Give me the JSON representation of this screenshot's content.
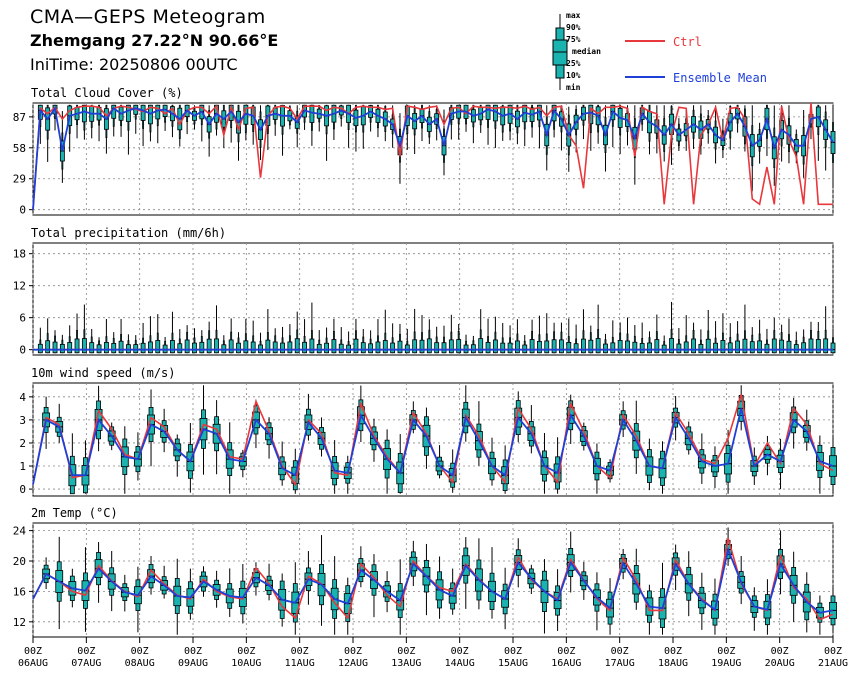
{
  "header": {
    "title": "CMA—GEPS Meteogram",
    "location": "Zhemgang 27.22°N 90.66°E",
    "initime": "IniTime: 20250806 00UTC"
  },
  "box_legend": {
    "labels": [
      "max",
      "90%",
      "75%",
      "median",
      "25%",
      "10%",
      "min"
    ]
  },
  "line_legend": [
    {
      "name": "Ctrl",
      "color": "#e8383d"
    },
    {
      "name": "Ensemble Mean",
      "color": "#1f3fd6"
    }
  ],
  "colors": {
    "box_fill": "#1bb3b0",
    "ctrl": "#e8383d",
    "mean": "#1f3fd6",
    "grid": "#888888"
  },
  "xaxis": {
    "ticks": [
      {
        "time": "00Z",
        "date": "06AUG"
      },
      {
        "time": "00Z",
        "date": "07AUG"
      },
      {
        "time": "00Z",
        "date": "08AUG"
      },
      {
        "time": "00Z",
        "date": "09AUG"
      },
      {
        "time": "00Z",
        "date": "10AUG"
      },
      {
        "time": "00Z",
        "date": "11AUG"
      },
      {
        "time": "00Z",
        "date": "12AUG"
      },
      {
        "time": "00Z",
        "date": "13AUG"
      },
      {
        "time": "00Z",
        "date": "14AUG"
      },
      {
        "time": "00Z",
        "date": "15AUG"
      },
      {
        "time": "00Z",
        "date": "16AUG"
      },
      {
        "time": "00Z",
        "date": "17AUG"
      },
      {
        "time": "00Z",
        "date": "18AUG"
      },
      {
        "time": "00Z",
        "date": "19AUG"
      },
      {
        "time": "00Z",
        "date": "20AUG"
      },
      {
        "time": "00Z",
        "date": "21AUG"
      }
    ]
  },
  "chart_data": [
    {
      "type": "box",
      "title": "Total Cloud Cover (%)",
      "yticks": [
        0,
        29,
        58,
        87
      ],
      "ylim": [
        -5,
        100
      ],
      "grid": true,
      "ctrl": [
        0,
        95,
        90,
        96,
        85,
        93,
        96,
        97,
        97,
        96,
        88,
        95,
        97,
        96,
        94,
        92,
        96,
        95,
        90,
        95,
        80,
        93,
        96,
        96,
        90,
        97,
        70,
        96,
        75,
        95,
        96,
        30,
        88,
        96,
        97,
        95,
        85,
        97,
        97,
        97,
        93,
        96,
        95,
        90,
        96,
        97,
        96,
        96,
        94,
        95,
        50,
        97,
        96,
        94,
        96,
        97,
        80,
        95,
        96,
        90,
        97,
        96,
        96,
        95,
        96,
        96,
        95,
        97,
        94,
        96,
        88,
        96,
        97,
        70,
        60,
        20,
        95,
        90,
        96,
        96,
        97,
        95,
        50,
        96,
        92,
        90,
        5,
        70,
        96,
        95,
        5,
        70,
        80,
        96,
        65,
        95,
        96,
        85,
        10,
        5,
        40,
        5,
        97,
        65,
        50,
        5,
        100,
        5,
        5,
        5
      ],
      "mean": [
        0,
        93,
        85,
        95,
        55,
        88,
        90,
        92,
        90,
        90,
        85,
        95,
        90,
        93,
        95,
        93,
        90,
        93,
        94,
        90,
        85,
        93,
        88,
        92,
        80,
        90,
        85,
        92,
        82,
        90,
        88,
        75,
        88,
        90,
        88,
        88,
        82,
        93,
        91,
        90,
        88,
        90,
        93,
        90,
        86,
        88,
        92,
        88,
        85,
        80,
        60,
        88,
        83,
        88,
        80,
        85,
        60,
        90,
        92,
        92,
        88,
        90,
        94,
        92,
        88,
        90,
        85,
        91,
        89,
        92,
        70,
        93,
        85,
        70,
        82,
        90,
        91,
        88,
        70,
        92,
        86,
        84,
        67,
        90,
        82,
        78,
        70,
        80,
        70,
        75,
        80,
        75,
        80,
        70,
        65,
        82,
        90,
        78,
        60,
        65,
        85,
        58,
        75,
        70,
        60,
        60,
        85,
        87,
        75,
        63
      ]
    },
    {
      "type": "box",
      "title": "Total precipitation (mm/6h)",
      "yticks": [
        0,
        6,
        12,
        18
      ],
      "ylim": [
        -1,
        20
      ],
      "grid": true,
      "ctrl": [
        0,
        0,
        0,
        0,
        0,
        0,
        0,
        0,
        0,
        0,
        0,
        0,
        0,
        0,
        0,
        0,
        0,
        0,
        0,
        0,
        0,
        0,
        0,
        0,
        0,
        0,
        0,
        0,
        0,
        0,
        0,
        0,
        0,
        0,
        0,
        0,
        0,
        0,
        0,
        0,
        0,
        0,
        0,
        0,
        0,
        0,
        0,
        0,
        0,
        0,
        0,
        0,
        0,
        0,
        0,
        0,
        0,
        0,
        0,
        0,
        0,
        0,
        0,
        0,
        0,
        0,
        0,
        0,
        0,
        0,
        0,
        0,
        0,
        0,
        0,
        0,
        0,
        0,
        0,
        0,
        0,
        0,
        0,
        0,
        0,
        0,
        0,
        0,
        0,
        0,
        0,
        0,
        0,
        0,
        0,
        0,
        0,
        0,
        0,
        0,
        0,
        0,
        0,
        0,
        0,
        0,
        0,
        0,
        0,
        0
      ],
      "mean": [
        0,
        0,
        0,
        0,
        0,
        0,
        0,
        0,
        0,
        0,
        0,
        0,
        0,
        0,
        0,
        0,
        0,
        0,
        0,
        0,
        0,
        0,
        0,
        0,
        0,
        0,
        0,
        0,
        0,
        0,
        0,
        0,
        0,
        0,
        0,
        0,
        0,
        0,
        0,
        0,
        0,
        0,
        0,
        0,
        0,
        0,
        0,
        0,
        0,
        0,
        0,
        0,
        0,
        0,
        0,
        0,
        0,
        0,
        0,
        0,
        0,
        0,
        0,
        0,
        0,
        0,
        0,
        0,
        0,
        0,
        0,
        0,
        0,
        0,
        0,
        0,
        0,
        0,
        0,
        0,
        0,
        0,
        0,
        0,
        0,
        0,
        0,
        0,
        0,
        0,
        0,
        0,
        0,
        0,
        0,
        0,
        0,
        0,
        0,
        0,
        0,
        0,
        0,
        0,
        0,
        0,
        0,
        0,
        0,
        0
      ]
    },
    {
      "type": "box",
      "title": "10m wind speed (m/s)",
      "yticks": [
        0,
        1,
        2,
        3,
        4
      ],
      "ylim": [
        -0.3,
        4.6
      ],
      "grid": true,
      "ctrl": [
        0.2,
        3.1,
        2.8,
        0.5,
        0.6,
        3.4,
        2.6,
        1.5,
        1.3,
        3.1,
        2.7,
        1.7,
        1.2,
        2.8,
        2.6,
        1.4,
        1.3,
        3.8,
        2.5,
        1.0,
        0.2,
        3.0,
        2.4,
        0.7,
        0.6,
        3.7,
        2.3,
        1.4,
        0.7,
        3.3,
        2.4,
        1.0,
        0.3,
        3.2,
        2.3,
        1.0,
        0.3,
        3.5,
        2.6,
        1.0,
        0.3,
        3.7,
        2.5,
        1.0,
        0.5,
        3.2,
        2.3,
        1.0,
        0.9,
        3.3,
        2.4,
        1.3,
        1.1,
        2.2,
        4.1,
        1.0,
        2.0,
        1.1,
        3.5,
        2.8,
        1.1,
        0.8
      ],
      "mean": [
        0.2,
        3.0,
        2.7,
        0.6,
        0.6,
        3.0,
        2.3,
        1.4,
        1.3,
        2.8,
        2.5,
        1.7,
        1.2,
        2.6,
        2.4,
        1.3,
        1.2,
        3.0,
        2.4,
        0.9,
        0.6,
        2.9,
        2.2,
        0.8,
        0.7,
        3.2,
        2.2,
        1.3,
        0.7,
        3.0,
        2.3,
        1.0,
        0.6,
        3.1,
        2.1,
        1.0,
        0.6,
        3.1,
        2.4,
        1.0,
        0.7,
        3.2,
        2.3,
        1.0,
        0.8,
        3.0,
        2.1,
        1.0,
        0.9,
        3.1,
        2.2,
        1.2,
        1.0,
        1.1,
        3.5,
        1.0,
        1.5,
        1.2,
        3.0,
        2.5,
        1.2,
        1.0
      ]
    },
    {
      "type": "box",
      "title": "2m Temp (°C)",
      "yticks": [
        12,
        16,
        20,
        24
      ],
      "ylim": [
        10,
        25
      ],
      "grid": true,
      "ctrl": [
        15,
        18.3,
        17.3,
        16.0,
        15.5,
        19.4,
        17.4,
        16.0,
        15.3,
        18.8,
        17.0,
        15.5,
        15.0,
        17.6,
        16.0,
        15.3,
        15.0,
        19.1,
        17.0,
        14.0,
        12.5,
        18.0,
        17.0,
        14.5,
        12.5,
        19.6,
        17.8,
        15.5,
        14.0,
        20.0,
        18.0,
        16.5,
        16.0,
        19.6,
        17.6,
        16.0,
        15.0,
        20.5,
        17.5,
        16.0,
        15.0,
        20.2,
        17.5,
        15.0,
        13.5,
        20.4,
        17.5,
        13.5,
        13.5,
        20.2,
        17.0,
        15.0,
        13.5,
        23.0,
        17.0,
        14.0,
        13.5,
        20.7,
        16.5,
        15.0,
        12.3,
        13.0
      ],
      "mean": [
        15,
        18.3,
        17.3,
        16.4,
        16.1,
        19.0,
        17.3,
        15.9,
        15.5,
        18.0,
        16.8,
        15.4,
        15.2,
        17.3,
        16.2,
        15.4,
        15.2,
        17.8,
        16.8,
        14.9,
        14.5,
        17.6,
        16.9,
        15.0,
        14.4,
        18.8,
        17.5,
        16.0,
        14.8,
        19.6,
        18.0,
        16.2,
        15.4,
        19.4,
        17.5,
        16.0,
        15.0,
        19.8,
        17.7,
        16.0,
        14.8,
        19.8,
        17.4,
        15.2,
        13.8,
        19.7,
        17.0,
        14.0,
        13.8,
        19.6,
        17.0,
        14.8,
        13.6,
        21.5,
        17.2,
        14.0,
        13.6,
        19.6,
        16.8,
        14.6,
        13.2,
        13.5
      ]
    }
  ]
}
